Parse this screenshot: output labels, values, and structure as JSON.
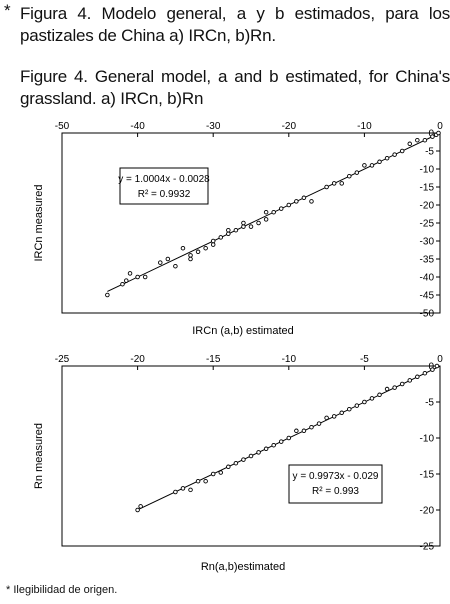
{
  "caption": {
    "asterisk": "*",
    "spanish": "Figura 4. Modelo general, a y b estimados, para los pastizales de China a) IRCn, b)Rn.",
    "english": "Figure 4. General model, a and b estimated, for China's grassland. a) IRCn, b)Rn"
  },
  "footnote": "* Ilegibilidad de origen.",
  "chart_data": [
    {
      "type": "scatter",
      "xlabel": "IRCn (a,b) estimated",
      "ylabel": "IRCn measured",
      "xlim": [
        -50,
        0
      ],
      "ylim": [
        -50,
        0
      ],
      "x_ticks": [
        -50,
        -40,
        -30,
        -20,
        -10,
        0
      ],
      "y_ticks": [
        0,
        -5,
        -10,
        -15,
        -20,
        -25,
        -30,
        -35,
        -40,
        -45,
        -50
      ],
      "equation": "y = 1.0004x - 0.0028",
      "r2_label": "R² = 0.9932",
      "trendline": {
        "slope": 1.0004,
        "intercept": -0.0028,
        "x_range": [
          -44,
          0
        ]
      },
      "points": [
        [
          -44,
          -45
        ],
        [
          -42,
          -42
        ],
        [
          -41.5,
          -41
        ],
        [
          -41,
          -39
        ],
        [
          -40,
          -40
        ],
        [
          -39,
          -40
        ],
        [
          -37,
          -36
        ],
        [
          -36,
          -35
        ],
        [
          -35,
          -37
        ],
        [
          -34,
          -32
        ],
        [
          -33,
          -34
        ],
        [
          -33,
          -35
        ],
        [
          -32,
          -33
        ],
        [
          -31,
          -32
        ],
        [
          -30,
          -30
        ],
        [
          -30,
          -31
        ],
        [
          -29,
          -29
        ],
        [
          -28,
          -28
        ],
        [
          -28,
          -27
        ],
        [
          -27,
          -27
        ],
        [
          -26,
          -26
        ],
        [
          -26,
          -25
        ],
        [
          -25,
          -26
        ],
        [
          -24,
          -25
        ],
        [
          -23,
          -24
        ],
        [
          -23,
          -22
        ],
        [
          -22,
          -22
        ],
        [
          -21,
          -21
        ],
        [
          -20,
          -20
        ],
        [
          -19,
          -19
        ],
        [
          -18,
          -18
        ],
        [
          -17,
          -19
        ],
        [
          -15,
          -15
        ],
        [
          -14,
          -14
        ],
        [
          -13,
          -14
        ],
        [
          -12,
          -12
        ],
        [
          -11,
          -11
        ],
        [
          -10,
          -9
        ],
        [
          -9,
          -9
        ],
        [
          -8,
          -8
        ],
        [
          -7,
          -7
        ],
        [
          -6,
          -6
        ],
        [
          -5,
          -5
        ],
        [
          -4,
          -3
        ],
        [
          -3,
          -2
        ],
        [
          -2,
          -2
        ],
        [
          -1,
          -1
        ],
        [
          -0.5,
          -0.5
        ],
        [
          -0.2,
          0
        ]
      ]
    },
    {
      "type": "scatter",
      "xlabel": "Rn(a,b)estimated",
      "ylabel": "Rn measured",
      "xlim": [
        -25,
        0
      ],
      "ylim": [
        -25,
        0
      ],
      "x_ticks": [
        -25,
        -20,
        -15,
        -10,
        -5,
        0
      ],
      "y_ticks": [
        0,
        -5,
        -10,
        -15,
        -20,
        -25
      ],
      "equation": "y = 0.9973x - 0.029",
      "r2_label": "R² = 0.993",
      "trendline": {
        "slope": 0.9973,
        "intercept": -0.029,
        "x_range": [
          -20,
          0
        ]
      },
      "points": [
        [
          -20,
          -20
        ],
        [
          -19.8,
          -19.5
        ],
        [
          -17.5,
          -17.5
        ],
        [
          -17,
          -17
        ],
        [
          -16.5,
          -17.2
        ],
        [
          -16,
          -16
        ],
        [
          -15.5,
          -16
        ],
        [
          -15,
          -15
        ],
        [
          -14.5,
          -14.8
        ],
        [
          -14,
          -14
        ],
        [
          -13.5,
          -13.5
        ],
        [
          -13,
          -13
        ],
        [
          -12.5,
          -12.5
        ],
        [
          -12,
          -12
        ],
        [
          -11.5,
          -11.5
        ],
        [
          -11,
          -11
        ],
        [
          -10.5,
          -10.5
        ],
        [
          -10,
          -10
        ],
        [
          -9.5,
          -9
        ],
        [
          -9,
          -9
        ],
        [
          -8.5,
          -8.5
        ],
        [
          -8,
          -8
        ],
        [
          -7.5,
          -7.2
        ],
        [
          -7,
          -7
        ],
        [
          -6.5,
          -6.5
        ],
        [
          -6,
          -6
        ],
        [
          -5.5,
          -5.5
        ],
        [
          -5,
          -5
        ],
        [
          -4.5,
          -4.5
        ],
        [
          -4,
          -4
        ],
        [
          -3.5,
          -3.2
        ],
        [
          -3,
          -3
        ],
        [
          -2.5,
          -2.5
        ],
        [
          -2,
          -2
        ],
        [
          -1.5,
          -1.5
        ],
        [
          -1,
          -1
        ],
        [
          -0.5,
          -0.5
        ],
        [
          -0.2,
          0
        ]
      ]
    }
  ]
}
